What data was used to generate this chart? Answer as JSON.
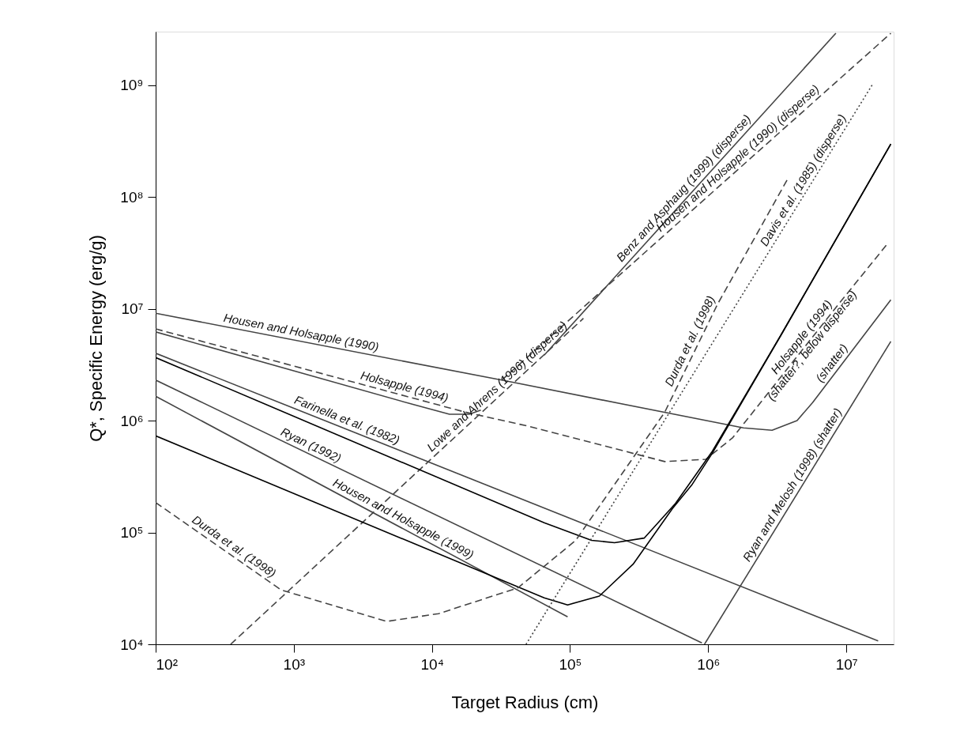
{
  "chart_data": {
    "type": "line",
    "xlabel": "Target Radius (cm)",
    "ylabel": "Q*, Specific Energy (erg/g)",
    "log": "xy",
    "grid": false,
    "xlim": [
      100,
      22000000.0
    ],
    "ylim": [
      10000.0,
      3000000000.0
    ],
    "xticks": [
      {
        "value": 100,
        "label": "10²"
      },
      {
        "value": 1000,
        "label": "10³"
      },
      {
        "value": 10000,
        "label": "10⁴"
      },
      {
        "value": 100000,
        "label": "10⁵"
      },
      {
        "value": 1000000,
        "label": "10⁶"
      },
      {
        "value": 10000000,
        "label": "10⁷"
      }
    ],
    "yticks": [
      {
        "value": 10000,
        "label": "10⁴"
      },
      {
        "value": 100000,
        "label": "10⁵"
      },
      {
        "value": 1000000,
        "label": "10⁶"
      },
      {
        "value": 10000000,
        "label": "10⁷"
      },
      {
        "value": 100000000,
        "label": "10⁸"
      },
      {
        "value": 1000000000,
        "label": "10⁹"
      }
    ],
    "series": [
      {
        "color": "#444444",
        "line_style": "solid",
        "x": [
          100,
          32000.0,
          1800000.0,
          2900000.0,
          4400000.0,
          5700000.0,
          21000000.0
        ],
        "values": [
          9100000.0,
          2300000.0,
          860000.0,
          820000.0,
          1000000.0,
          1450000.0,
          12000000.0
        ]
      },
      {
        "color": "#444444",
        "line_style": "dashed",
        "x": [
          100,
          17400.0,
          50000.0,
          485000.0,
          960000.0,
          1500000.0,
          8800000.0,
          20000000.0
        ],
        "values": [
          6600000.0,
          1190000.0,
          890000.0,
          430000.0,
          450000.0,
          700000.0,
          11000000.0,
          38500000.0
        ]
      },
      {
        "color": "#444444",
        "line_style": "solid",
        "x": [
          100,
          7200.0,
          13400.0,
          18600.0,
          22600.0
        ],
        "values": [
          6200000.0,
          1400000.0,
          1140000.0,
          1140000.0,
          1240000.0
        ]
      },
      {
        "color": "#444444",
        "line_style": "dashed",
        "x": [
          349,
          125000.0
        ],
        "values": [
          10000.0,
          8200000.0
        ]
      },
      {
        "color": "#444444",
        "line_style": "dashed",
        "x": [
          32000.0,
          21000000.0
        ],
        "values": [
          2300000.0,
          2900000000.0
        ]
      },
      {
        "color": "#444444",
        "line_style": "solid",
        "x": [
          65000.0,
          8400000.0
        ],
        "values": [
          3850000.0,
          2900000000.0
        ]
      },
      {
        "color": "#444444",
        "line_style": "solid",
        "x": [
          100,
          17000000.0
        ],
        "values": [
          4000000.0,
          10700.0
        ]
      },
      {
        "color": "#444444",
        "line_style": "solid",
        "x": [
          100,
          900000.0
        ],
        "values": [
          2300000.0,
          10300.0
        ]
      },
      {
        "color": "#444444",
        "line_style": "solid",
        "x": [
          100,
          96000.0
        ],
        "values": [
          1650000.0,
          17600.0
        ]
      },
      {
        "color": "#000000",
        "line_style": "solid",
        "x": [
          100,
          65000.0,
          143000.0,
          210000.0,
          344000.0,
          580000.0,
          1070000.0,
          3360000.0,
          21000000.0
        ],
        "values": [
          3660000.0,
          122000.0,
          85000.0,
          81000.0,
          89000.0,
          182000.0,
          530000.0,
          5800000.0,
          297000000.0
        ]
      },
      {
        "color": "#000000",
        "line_style": "solid",
        "x": [
          100,
          65000.0,
          96000.0,
          163000.0,
          286000.0,
          550000.0,
          760000.0,
          1070000.0,
          3360000.0,
          21000000.0
        ],
        "values": [
          730000.0,
          26000.0,
          22500.0,
          27000.0,
          52000.0,
          163000.0,
          265000.0,
          510000.0,
          5800000.0,
          297000000.0
        ]
      },
      {
        "color": "#444444",
        "line_style": "dashed",
        "x": [
          100,
          811,
          4700.0,
          11200.0,
          42000.0,
          110000.0,
          485000.0,
          1170000.0,
          3800000.0
        ],
        "values": [
          185000.0,
          30600.0,
          16000.0,
          18800.0,
          32000.0,
          85000.0,
          1190000.0,
          11000000.0,
          148000000.0
        ]
      },
      {
        "color": "#444444",
        "line_style": "dotted",
        "x": [
          48000.0,
          15600000.0
        ],
        "values": [
          10000.0,
          1030000000.0
        ]
      },
      {
        "color": "#444444",
        "line_style": "solid",
        "x": [
          940000.0,
          21000000.0
        ],
        "values": [
          10000.0,
          5100000.0
        ]
      }
    ],
    "annotations": [
      {
        "text": "Housen and Holsapple (1990)",
        "x": 1100,
        "y": 5140000.0
      },
      {
        "text": "Holsapple (1994)",
        "x": 6100,
        "y": 1690000.0
      },
      {
        "text": "Farinella et al. (1982)",
        "x": 2300,
        "y": 855000.0
      },
      {
        "text": "Ryan (1992)",
        "x": 1250,
        "y": 513000.0
      },
      {
        "text": "Housen and Holsapple (1999)",
        "x": 5800,
        "y": 113000.0
      },
      {
        "text": "Durda et al. (1998)",
        "x": 340,
        "y": 64600.0
      },
      {
        "text": "Lowe and Ahrens (1996) (disperse)",
        "x": 32700.0,
        "y": 1770000.0
      },
      {
        "text": "Benz and Asphaug (1999) (disperse)",
        "x": 740000.0,
        "y": 106000000.0
      },
      {
        "text": "Housen and Holsapple (1990) (disperse)",
        "x": 1800000.0,
        "y": 194000000.0
      },
      {
        "text": "Durda et al. (1998)",
        "x": 840000.0,
        "y": 4750000.0
      },
      {
        "text": "Davis et al. (1985) (disperse)",
        "x": 5500000.0,
        "y": 128000000.0
      },
      {
        "text": "Holsapple (1994)\n(shatter?, below disperse)",
        "x": 5300000.0,
        "y": 4990000.0
      },
      {
        "text": "(shatter)",
        "x": 8800000.0,
        "y": 2930000.0
      },
      {
        "text": "Ryan and Melosh (1998) (shatter)",
        "x": 4600000.0,
        "y": 242000.0
      }
    ]
  }
}
